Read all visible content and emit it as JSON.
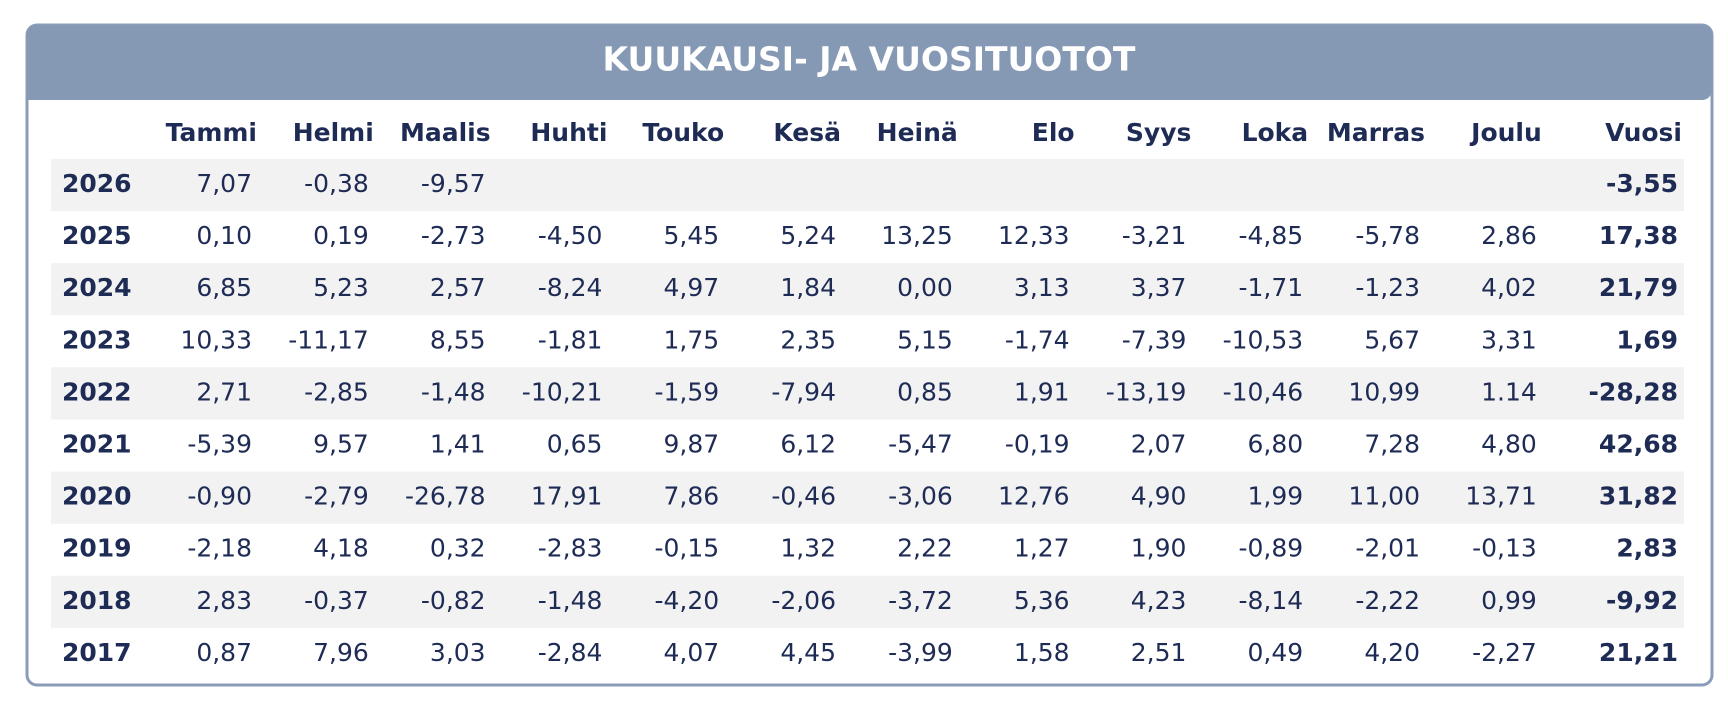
{
  "table": {
    "title": "KUUKAUSI- JA VUOSITUOTOT",
    "columns": [
      "Tammi",
      "Helmi",
      "Maalis",
      "Huhti",
      "Touko",
      "Kesä",
      "Heinä",
      "Elo",
      "Syys",
      "Loka",
      "Marras",
      "Joulu"
    ],
    "total_column": "Vuosi",
    "rows": [
      {
        "year": "2026",
        "months": [
          "7,07",
          "-0,38",
          "-9,57"
        ],
        "total": "-3,55"
      },
      {
        "year": "2025",
        "months": [
          "0,10",
          "0,19",
          "-2,73",
          "-4,50",
          "5,45",
          "5,24",
          "13,25",
          "12,33",
          "-3,21",
          "-4,85",
          "-5,78",
          "2,86"
        ],
        "total": "17,38"
      },
      {
        "year": "2024",
        "months": [
          "6,85",
          "5,23",
          "2,57",
          "-8,24",
          "4,97",
          "1,84",
          "0,00",
          "3,13",
          "3,37",
          "-1,71",
          "-1,23",
          "4,02"
        ],
        "total": "21,79"
      },
      {
        "year": "2023",
        "months": [
          "10,33",
          "-11,17",
          "8,55",
          "-1,81",
          "1,75",
          "2,35",
          "5,15",
          "-1,74",
          "-7,39",
          "-10,53",
          "5,67",
          "3,31"
        ],
        "total": "1,69"
      },
      {
        "year": "2022",
        "months": [
          "2,71",
          "-2,85",
          "-1,48",
          "-10,21",
          "-1,59",
          "-7,94",
          "0,85",
          "1,91",
          "-13,19",
          "-10,46",
          "10,99",
          "1.14"
        ],
        "total": "-28,28"
      },
      {
        "year": "2021",
        "months": [
          "-5,39",
          "9,57",
          "1,41",
          "0,65",
          "9,87",
          "6,12",
          "-5,47",
          "-0,19",
          "2,07",
          "6,80",
          "7,28",
          "4,80"
        ],
        "total": "42,68"
      },
      {
        "year": "2020",
        "months": [
          "-0,90",
          "-2,79",
          "-26,78",
          "17,91",
          "7,86",
          "-0,46",
          "-3,06",
          "12,76",
          "4,90",
          "1,99",
          "11,00",
          "13,71"
        ],
        "total": "31,82"
      },
      {
        "year": "2019",
        "months": [
          "-2,18",
          "4,18",
          "0,32",
          "-2,83",
          "-0,15",
          "1,32",
          "2,22",
          "1,27",
          "1,90",
          "-0,89",
          "-2,01",
          "-0,13"
        ],
        "total": "2,83"
      },
      {
        "year": "2018",
        "months": [
          "2,83",
          "-0,37",
          "-0,82",
          "-1,48",
          "-4,20",
          "-2,06",
          "-3,72",
          "5,36",
          "4,23",
          "-8,14",
          "-2,22",
          "0,99"
        ],
        "total": "-9,92"
      },
      {
        "year": "2017",
        "months": [
          "0,87",
          "7,96",
          "3,03",
          "-2,84",
          "4,07",
          "4,45",
          "-3,99",
          "1,58",
          "2,51",
          "0,49",
          "4,20",
          "-2,27"
        ],
        "total": "21,21"
      }
    ]
  }
}
